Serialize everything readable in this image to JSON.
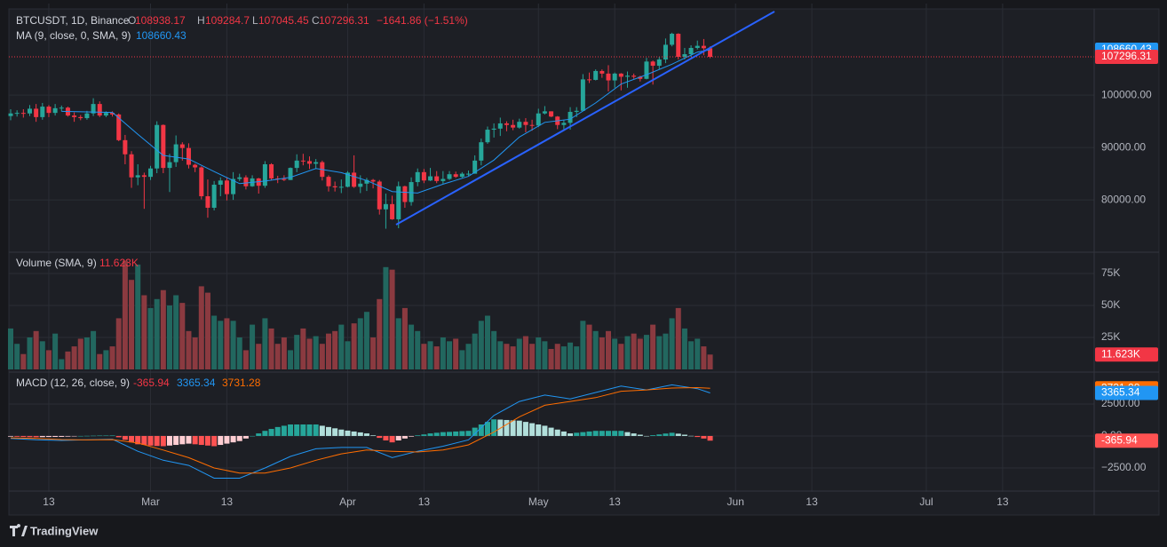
{
  "header": {
    "symbol": "BTCUSDT, 1D, Binance",
    "o": "O",
    "h": "H",
    "l": "L",
    "c": "C",
    "change": "−1641.86 (−1.51%)"
  },
  "chart_data": [
    {
      "type": "candlestick",
      "colors": {
        "up": "#26a69a",
        "down": "#f23645"
      },
      "ohlc": [
        [
          96000,
          97300,
          95200,
          96500
        ],
        [
          96500,
          97100,
          95900,
          96600
        ],
        [
          96600,
          97300,
          95700,
          96500
        ],
        [
          96500,
          98100,
          96000,
          97400
        ],
        [
          97400,
          98300,
          94900,
          95800
        ],
        [
          95800,
          98500,
          95300,
          97800
        ],
        [
          97800,
          98100,
          95800,
          96600
        ],
        [
          96600,
          98300,
          96100,
          97500
        ],
        [
          97500,
          98000,
          96900,
          97600
        ],
        [
          97600,
          97800,
          95900,
          96100
        ],
        [
          96100,
          96700,
          94900,
          95800
        ],
        [
          95800,
          96200,
          95200,
          95600
        ],
        [
          95600,
          97000,
          95300,
          96500
        ],
        [
          96500,
          99400,
          96000,
          98300
        ],
        [
          98300,
          98800,
          95800,
          96100
        ],
        [
          96100,
          96900,
          95800,
          96600
        ],
        [
          96600,
          96900,
          95900,
          96300
        ],
        [
          96300,
          96500,
          91200,
          91400
        ],
        [
          91400,
          92400,
          86800,
          88700
        ],
        [
          88700,
          89300,
          82300,
          84300
        ],
        [
          84300,
          86800,
          82800,
          84700
        ],
        [
          84700,
          85200,
          78300,
          84400
        ],
        [
          84400,
          86500,
          83800,
          86000
        ],
        [
          86000,
          95000,
          85100,
          94300
        ],
        [
          94300,
          94400,
          85100,
          86100
        ],
        [
          86100,
          88800,
          81500,
          87200
        ],
        [
          87200,
          92300,
          86300,
          90600
        ],
        [
          90600,
          91000,
          87500,
          89900
        ],
        [
          89900,
          90800,
          86000,
          86700
        ],
        [
          86700,
          86900,
          85300,
          86200
        ],
        [
          86200,
          86400,
          80100,
          80700
        ],
        [
          80700,
          83900,
          76600,
          78500
        ],
        [
          78500,
          83600,
          78000,
          82900
        ],
        [
          82900,
          84300,
          80700,
          83700
        ],
        [
          83700,
          84300,
          79900,
          81100
        ],
        [
          81100,
          85300,
          80000,
          84000
        ],
        [
          84000,
          85000,
          83600,
          84300
        ],
        [
          84300,
          84700,
          82000,
          82600
        ],
        [
          82600,
          84700,
          82500,
          84100
        ],
        [
          84100,
          84200,
          81200,
          82700
        ],
        [
          82700,
          87400,
          82300,
          86800
        ],
        [
          86800,
          87000,
          83700,
          84100
        ],
        [
          84100,
          84600,
          83200,
          84000
        ],
        [
          84000,
          84700,
          83600,
          83800
        ],
        [
          83800,
          86200,
          83800,
          86100
        ],
        [
          86100,
          88700,
          85300,
          87500
        ],
        [
          87500,
          88800,
          86600,
          87400
        ],
        [
          87400,
          88300,
          85900,
          86900
        ],
        [
          86900,
          87800,
          85900,
          87200
        ],
        [
          87200,
          87500,
          83700,
          84400
        ],
        [
          84400,
          84700,
          81600,
          82600
        ],
        [
          82600,
          83500,
          81600,
          82400
        ],
        [
          82400,
          83900,
          81300,
          82500
        ],
        [
          82500,
          85500,
          82400,
          85200
        ],
        [
          85200,
          88500,
          82300,
          82500
        ],
        [
          82500,
          84700,
          81300,
          83100
        ],
        [
          83100,
          84200,
          81700,
          83800
        ],
        [
          83800,
          84000,
          82200,
          83500
        ],
        [
          83500,
          83800,
          77200,
          78200
        ],
        [
          78200,
          81200,
          74500,
          79200
        ],
        [
          79200,
          80800,
          76200,
          76300
        ],
        [
          76300,
          83500,
          74600,
          82600
        ],
        [
          82600,
          82700,
          78500,
          79600
        ],
        [
          79600,
          84300,
          78900,
          83400
        ],
        [
          83400,
          86000,
          82600,
          85300
        ],
        [
          85300,
          85900,
          83200,
          83700
        ],
        [
          83700,
          86100,
          83600,
          84500
        ],
        [
          84500,
          85500,
          83200,
          83600
        ],
        [
          83600,
          85500,
          83100,
          84000
        ],
        [
          84000,
          85500,
          83800,
          84900
        ],
        [
          84900,
          85400,
          84200,
          84400
        ],
        [
          84400,
          85300,
          84200,
          85000
        ],
        [
          85000,
          85600,
          84600,
          85000
        ],
        [
          85000,
          88500,
          85000,
          87500
        ],
        [
          87500,
          91700,
          86600,
          91000
        ],
        [
          91000,
          94000,
          90700,
          93400
        ],
        [
          93400,
          94600,
          91900,
          93600
        ],
        [
          93600,
          95700,
          92200,
          94600
        ],
        [
          94600,
          95000,
          93100,
          94300
        ],
        [
          94300,
          95300,
          93300,
          93800
        ],
        [
          93800,
          95500,
          93600,
          94900
        ],
        [
          94900,
          95600,
          92900,
          94300
        ],
        [
          94300,
          95300,
          93200,
          94200
        ],
        [
          94200,
          97400,
          93900,
          96500
        ],
        [
          96500,
          97900,
          96300,
          96900
        ],
        [
          96900,
          96900,
          95800,
          95900
        ],
        [
          95900,
          96000,
          93500,
          94300
        ],
        [
          94300,
          95200,
          93500,
          94700
        ],
        [
          94700,
          97700,
          93400,
          96800
        ],
        [
          96800,
          97700,
          95800,
          97000
        ],
        [
          97000,
          104000,
          96900,
          103000
        ],
        [
          103000,
          104300,
          102300,
          102900
        ],
        [
          102900,
          104900,
          102800,
          104600
        ],
        [
          104600,
          104900,
          103300,
          104100
        ],
        [
          104100,
          105700,
          100700,
          102800
        ],
        [
          102800,
          104300,
          101400,
          104100
        ],
        [
          104100,
          104200,
          100900,
          103500
        ],
        [
          103500,
          104500,
          101400,
          103700
        ],
        [
          103700,
          104100,
          103100,
          103500
        ],
        [
          103500,
          103700,
          102600,
          103100
        ],
        [
          103100,
          107100,
          103000,
          106400
        ],
        [
          106400,
          106600,
          102000,
          105600
        ],
        [
          105600,
          107300,
          104900,
          106800
        ],
        [
          106800,
          110800,
          106100,
          109600
        ],
        [
          109600,
          111900,
          109300,
          111700
        ],
        [
          111700,
          111800,
          106800,
          107300
        ],
        [
          107300,
          109000,
          106800,
          107800
        ],
        [
          107800,
          109500,
          107300,
          109000
        ],
        [
          109000,
          110400,
          108700,
          109400
        ],
        [
          109400,
          110700,
          107600,
          108938
        ],
        [
          108938.17,
          109284.7,
          107045.45,
          107296.31
        ]
      ],
      "ma": {
        "name": "MA (9, close, 0, SMA, 9)",
        "color": "#2196f3",
        "x": [
          8,
          12,
          16,
          20,
          24,
          28,
          32,
          36,
          40,
          44,
          48,
          52,
          56,
          60,
          64,
          68,
          72,
          76,
          80,
          84,
          88,
          92,
          96,
          100,
          104,
          108,
          110
        ],
        "values": [
          96900,
          96800,
          96700,
          92500,
          88500,
          87800,
          85400,
          83100,
          83600,
          84300,
          85980,
          85200,
          83700,
          81600,
          81300,
          83000,
          84500,
          87600,
          92000,
          94800,
          95400,
          98500,
          102100,
          103900,
          105900,
          108200,
          108660.43
        ]
      },
      "ylim": [
        70700,
        116450
      ],
      "yticks": [
        {
          "value": 80000,
          "label": "80000.00"
        },
        {
          "value": 90000,
          "label": "90000.00"
        },
        {
          "value": 100000,
          "label": "100000.00"
        }
      ],
      "xlim": [
        -0.28,
        170.4
      ],
      "xticks": [
        {
          "value": 6,
          "label": "13"
        },
        {
          "value": 22,
          "label": "Mar"
        },
        {
          "value": 34,
          "label": "13"
        },
        {
          "value": 53,
          "label": "Apr"
        },
        {
          "value": 65,
          "label": "13"
        },
        {
          "value": 83,
          "label": "May"
        },
        {
          "value": 95,
          "label": "13"
        },
        {
          "value": 114,
          "label": "Jun"
        },
        {
          "value": 126,
          "label": "13"
        },
        {
          "value": 144,
          "label": "Jul"
        },
        {
          "value": 156,
          "label": "13"
        }
      ],
      "grid": true
    },
    {
      "type": "bar",
      "title": "Volume (SMA, 9)",
      "colors": {
        "up": "#22675f",
        "down": "#8b3a40"
      },
      "values": [
        32,
        20,
        12,
        25,
        30,
        22,
        15,
        28,
        8,
        14,
        18,
        24,
        25,
        30,
        12,
        15,
        18,
        40,
        85,
        70,
        82,
        58,
        48,
        55,
        62,
        50,
        58,
        52,
        30,
        25,
        65,
        60,
        42,
        38,
        40,
        38,
        25,
        15,
        35,
        20,
        40,
        32,
        20,
        25,
        15,
        27,
        32,
        24,
        26,
        20,
        28,
        30,
        35,
        22,
        36,
        40,
        45,
        25,
        55,
        80,
        78,
        40,
        48,
        35,
        30,
        20,
        22,
        18,
        25,
        22,
        24,
        15,
        20,
        28,
        38,
        42,
        30,
        22,
        20,
        18,
        24,
        26,
        20,
        25,
        22,
        16,
        20,
        18,
        21,
        18,
        38,
        35,
        30,
        25,
        30,
        24,
        20,
        26,
        28,
        24,
        27,
        35,
        26,
        28,
        40,
        48,
        32,
        22,
        24,
        18,
        11.623
      ],
      "last_label": "11.623K",
      "ylim": [
        0,
        87.5
      ],
      "yticks": [
        {
          "value": 25,
          "label": "25K"
        },
        {
          "value": 50,
          "label": "50K"
        },
        {
          "value": 75,
          "label": "75K"
        }
      ],
      "grid": true
    },
    {
      "type": "macd",
      "title": "MACD (12, 26, close, 9)",
      "histogram": {
        "values": [
          -50,
          -60,
          -80,
          -90,
          -100,
          -90,
          -80,
          -75,
          -70,
          -50,
          -20,
          0,
          10,
          20,
          30,
          35,
          40,
          -100,
          -300,
          -500,
          -650,
          -700,
          -750,
          -780,
          -800,
          -750,
          -700,
          -650,
          -600,
          -650,
          -700,
          -750,
          -800,
          -700,
          -600,
          -500,
          -400,
          -200,
          0,
          200,
          400,
          550,
          700,
          800,
          900,
          900,
          900,
          900,
          900,
          800,
          700,
          600,
          500,
          420,
          350,
          280,
          200,
          50,
          -150,
          -350,
          -500,
          -350,
          -200,
          -50,
          50,
          120,
          200,
          250,
          300,
          320,
          350,
          380,
          400,
          650,
          900,
          1100,
          1300,
          1280,
          1250,
          1220,
          1200,
          1100,
          1000,
          900,
          800,
          650,
          500,
          350,
          200,
          250,
          300,
          350,
          400,
          400,
          400,
          400,
          400,
          300,
          200,
          100,
          0,
          60,
          120,
          190,
          250,
          180,
          100,
          10,
          -80,
          -200,
          -365.94
        ],
        "colors": {
          "pos_up": "#26a69a",
          "pos_down": "#b2dfdb",
          "neg_down": "#ff5252",
          "neg_up": "#ffcdd2"
        }
      },
      "x": [
        0,
        4,
        8,
        12,
        16,
        20,
        24,
        28,
        32,
        36,
        40,
        44,
        48,
        52,
        56,
        60,
        64,
        68,
        72,
        76,
        80,
        84,
        88,
        92,
        96,
        100,
        104,
        108,
        110
      ],
      "macd": {
        "color": "#2196f3",
        "values": [
          -200,
          -300,
          -350,
          -300,
          -250,
          -1200,
          -1900,
          -2300,
          -3300,
          -3300,
          -2500,
          -1600,
          -1000,
          -900,
          -900,
          -1700,
          -1200,
          -800,
          -300,
          1600,
          2700,
          3200,
          2900,
          3400,
          3900,
          3600,
          4000,
          3700,
          3365.34
        ]
      },
      "signal": {
        "color": "#ff6d00",
        "values": [
          -150,
          -200,
          -280,
          -310,
          -290,
          -550,
          -1100,
          -1700,
          -2500,
          -2900,
          -2900,
          -2500,
          -1900,
          -1400,
          -1100,
          -1200,
          -1250,
          -1100,
          -700,
          300,
          1500,
          2400,
          2700,
          3000,
          3500,
          3600,
          3750,
          3780,
          3731.28
        ]
      },
      "ylim": [
        -4240,
        4790
      ],
      "yticks": [
        {
          "value": -2500,
          "label": "−2500.00"
        },
        {
          "value": 0,
          "label": "0.00"
        },
        {
          "value": 2500,
          "label": "2500.00"
        }
      ],
      "grid": true
    }
  ],
  "footer": {
    "brand": "TradingView"
  }
}
